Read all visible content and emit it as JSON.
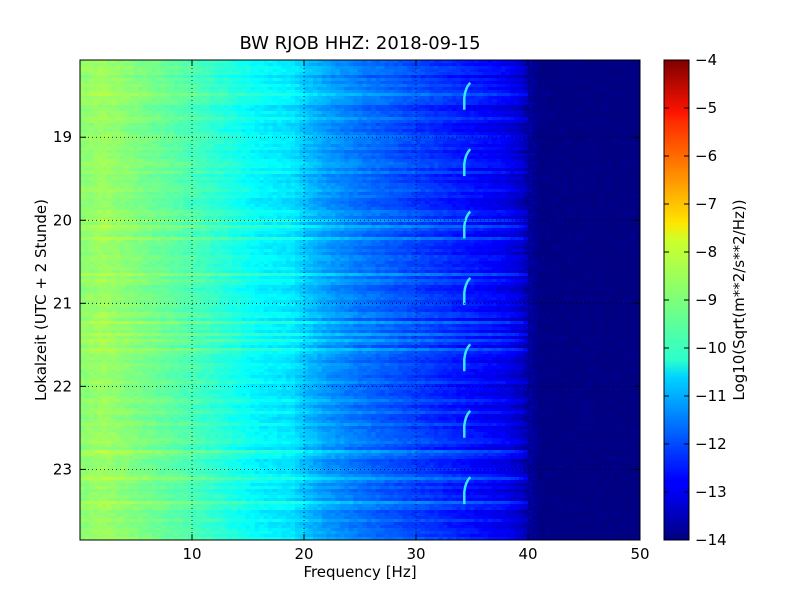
{
  "chart_data": {
    "type": "heatmap",
    "title": "BW RJOB HHZ: 2018-09-15",
    "xlabel": "Frequency [Hz]",
    "ylabel": "Lokalzeit (UTC + 2 Stunde)",
    "xlim": [
      0,
      50
    ],
    "ylim": [
      18.07,
      23.85
    ],
    "y_inverted": true,
    "x_ticks": [
      "10",
      "20",
      "30",
      "40",
      "50"
    ],
    "x_tick_values": [
      10,
      20,
      30,
      40,
      50
    ],
    "y_ticks": [
      "19",
      "20",
      "21",
      "22",
      "23"
    ],
    "y_tick_values": [
      19,
      20,
      21,
      22,
      23
    ],
    "grid": true,
    "colormap": "jet",
    "colorbar": {
      "label": "Log10(Sqrt(m**2/s**2/Hz))",
      "range": [
        -14,
        -4
      ],
      "ticks": [
        "−4",
        "−5",
        "−6",
        "−7",
        "−8",
        "−9",
        "−10",
        "−11",
        "−12",
        "−13",
        "−14"
      ],
      "tick_values": [
        -4,
        -5,
        -6,
        -7,
        -8,
        -9,
        -10,
        -11,
        -12,
        -13,
        -14
      ]
    },
    "spectral_profile": {
      "frequency_hz": [
        0,
        2,
        5,
        8,
        10,
        13,
        16,
        19,
        20,
        22,
        25,
        28,
        30,
        33,
        36,
        38,
        39.5,
        40,
        41,
        50
      ],
      "log10_amplitude": [
        -8.9,
        -8.7,
        -9.0,
        -9.3,
        -9.5,
        -9.9,
        -10.3,
        -10.5,
        -10.8,
        -11.2,
        -11.6,
        -11.9,
        -12.1,
        -12.4,
        -12.7,
        -12.9,
        -13.3,
        -13.6,
        -13.95,
        -14
      ]
    },
    "line_feature": {
      "frequency_hz": 34.4,
      "hours": [
        18.5,
        19.3,
        20.05,
        20.85,
        21.65,
        22.45,
        23.25
      ]
    }
  }
}
